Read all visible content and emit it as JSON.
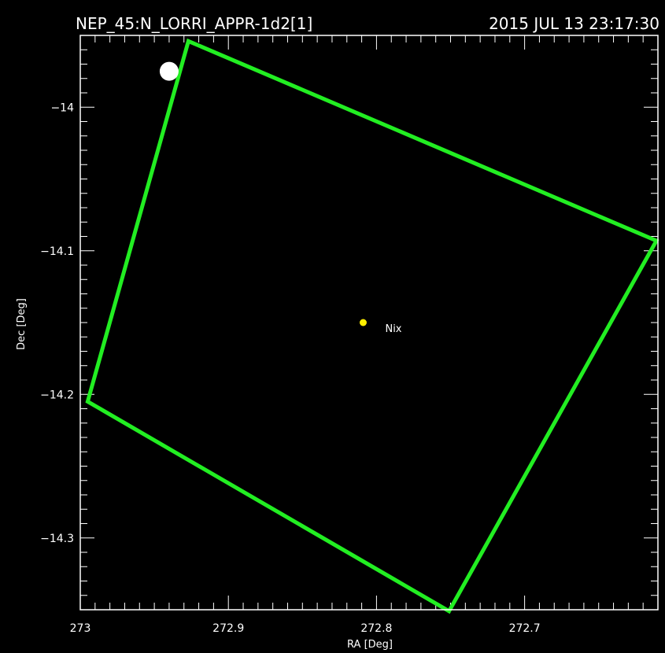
{
  "chart_data": {
    "type": "scatter",
    "title_left": "NEP_45:N_LORRI_APPR-1d2[1]",
    "title_right": "2015 JUL 13 23:17:30",
    "xlabel": "RA [Deg]",
    "ylabel": "Dec [Deg]",
    "xlim": [
      273.0,
      272.61
    ],
    "ylim": [
      -14.35,
      -13.95
    ],
    "x_ticks": [
      {
        "value": 273.0,
        "label": "273"
      },
      {
        "value": 272.9,
        "label": "272.9"
      },
      {
        "value": 272.8,
        "label": "272.8"
      },
      {
        "value": 272.7,
        "label": "272.7"
      }
    ],
    "y_ticks": [
      {
        "value": -14.0,
        "label": "−14"
      },
      {
        "value": -14.1,
        "label": "−14.1"
      },
      {
        "value": -14.2,
        "label": "−14.2"
      },
      {
        "value": -14.3,
        "label": "−14.3"
      }
    ],
    "grid": false,
    "background_color": "#000000",
    "frame_color": "#ffffff",
    "fov_outline": {
      "color": "#22ee22",
      "vertices": [
        [
          272.927,
          -13.954
        ],
        [
          272.611,
          -14.093
        ],
        [
          272.751,
          -14.351
        ],
        [
          272.995,
          -14.205
        ]
      ]
    },
    "points": [
      {
        "name": "Nix",
        "x": 272.809,
        "y": -14.15,
        "color": "#ffee00",
        "size": "small",
        "label": "Nix"
      },
      {
        "x": 272.94,
        "y": -13.975,
        "color": "#ffffff",
        "size": "large",
        "label": ""
      }
    ]
  }
}
